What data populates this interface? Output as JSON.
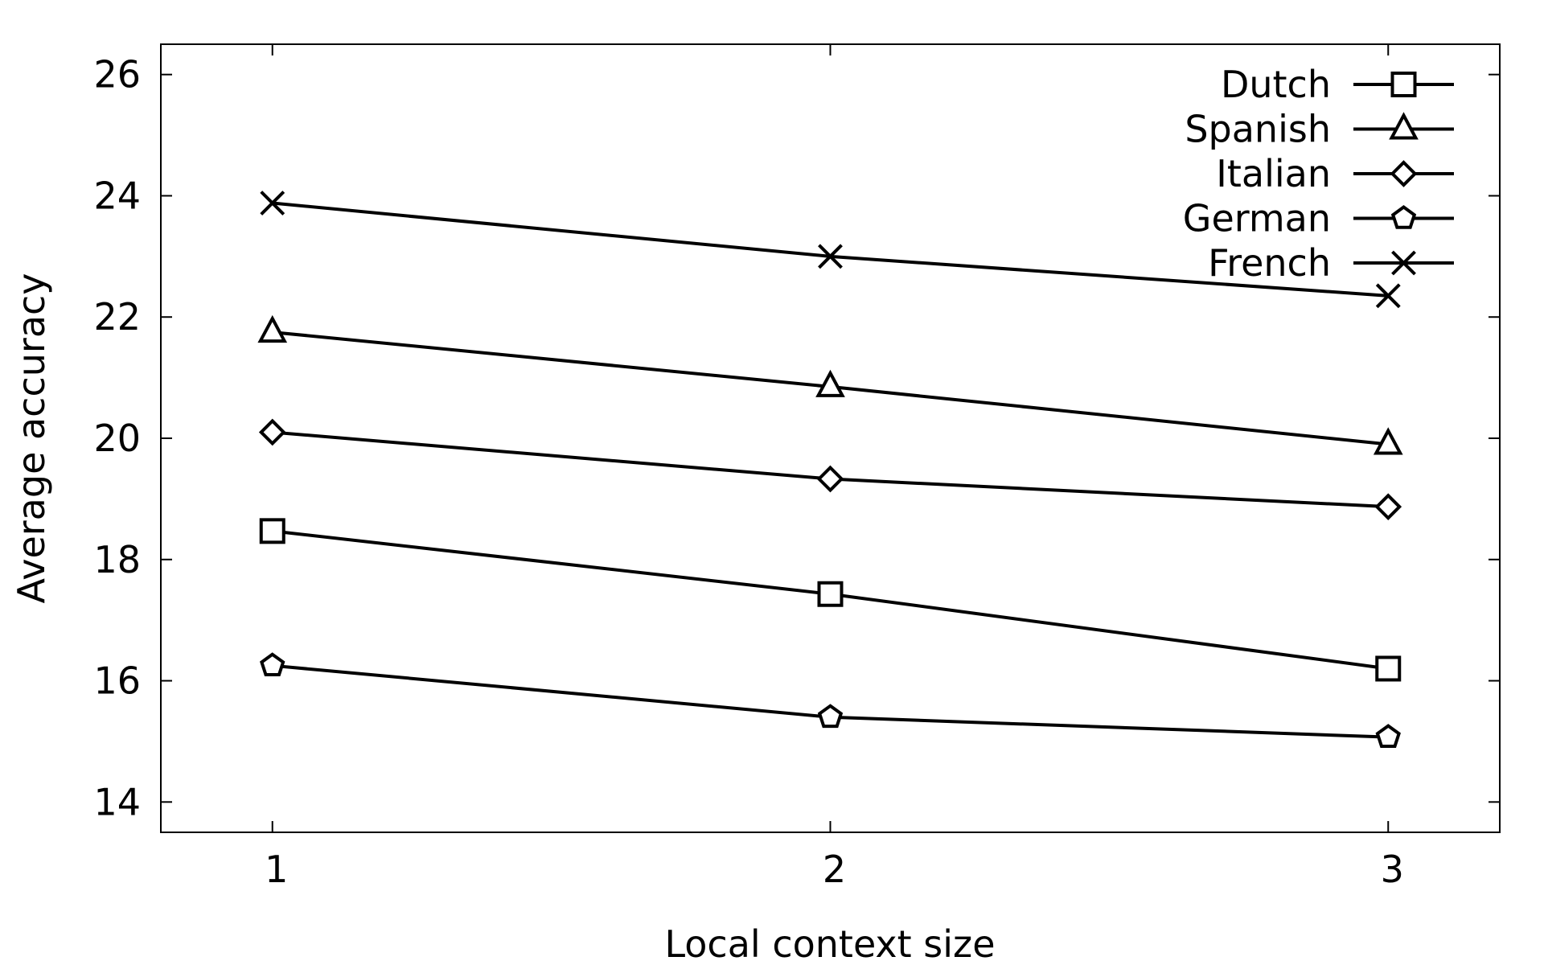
{
  "chart_data": {
    "type": "line",
    "xlabel": "Local context size",
    "ylabel": "Average accuracy",
    "x": [
      1,
      2,
      3
    ],
    "xlim": [
      0.8,
      3.2
    ],
    "ylim": [
      13.5,
      26.5
    ],
    "yticks": [
      14,
      16,
      18,
      20,
      22,
      24,
      26
    ],
    "xticks": [
      1,
      2,
      3
    ],
    "grid": false,
    "legend_position": "top-right",
    "series": [
      {
        "name": "Dutch",
        "marker": "square",
        "values": [
          18.47,
          17.43,
          16.2
        ]
      },
      {
        "name": "Spanish",
        "marker": "triangle",
        "values": [
          21.75,
          20.85,
          19.9
        ]
      },
      {
        "name": "Italian",
        "marker": "diamond",
        "values": [
          20.1,
          19.33,
          18.87
        ]
      },
      {
        "name": "German",
        "marker": "pentagon",
        "values": [
          16.25,
          15.4,
          15.07
        ]
      },
      {
        "name": "French",
        "marker": "cross",
        "values": [
          23.88,
          23.0,
          22.35
        ]
      }
    ],
    "colors": {
      "line": "#000000"
    }
  }
}
